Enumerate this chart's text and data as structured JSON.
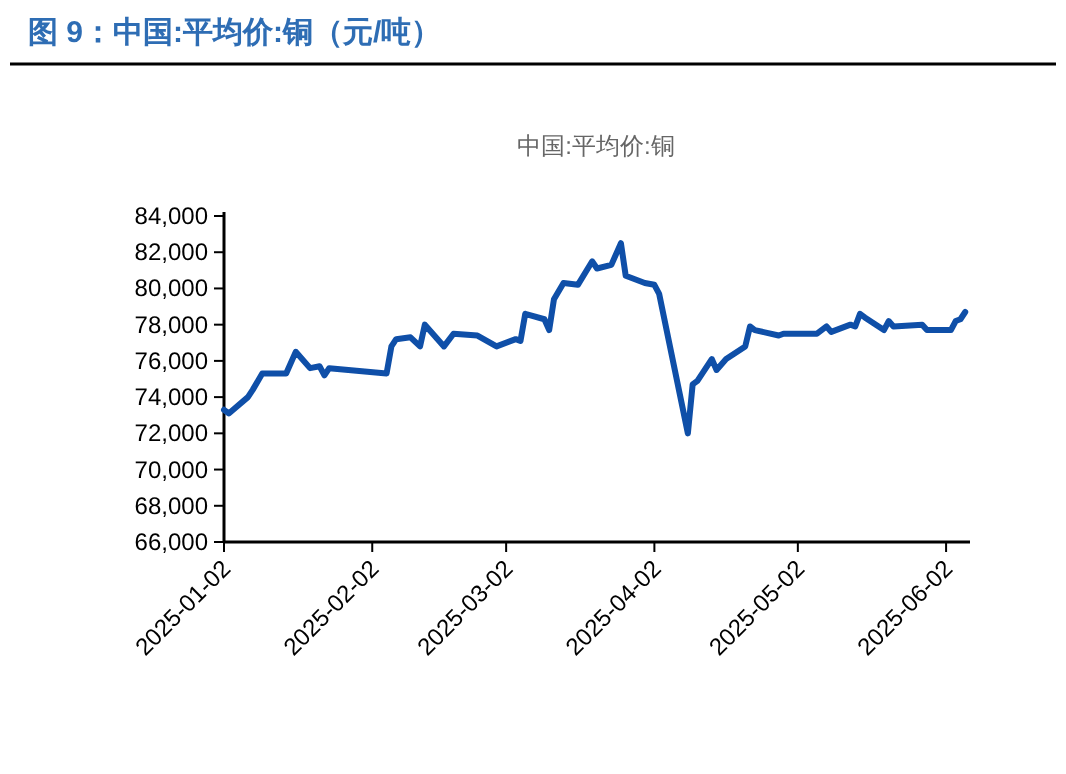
{
  "chart_data": {
    "type": "line",
    "title": "图 9：中国:平均价:铜（元/吨）",
    "subtitle": "中国:平均价:铜",
    "x": [
      "2025-01-02",
      "2025-01-03",
      "2025-01-07",
      "2025-01-08",
      "2025-01-10",
      "2025-01-15",
      "2025-01-17",
      "2025-01-20",
      "2025-01-22",
      "2025-01-23",
      "2025-01-24",
      "2025-02-05",
      "2025-02-06",
      "2025-02-07",
      "2025-02-10",
      "2025-02-12",
      "2025-02-13",
      "2025-02-17",
      "2025-02-19",
      "2025-02-24",
      "2025-02-28",
      "2025-03-04",
      "2025-03-05",
      "2025-03-06",
      "2025-03-10",
      "2025-03-11",
      "2025-03-12",
      "2025-03-14",
      "2025-03-17",
      "2025-03-20",
      "2025-03-21",
      "2025-03-24",
      "2025-03-26",
      "2025-03-27",
      "2025-03-31",
      "2025-04-02",
      "2025-04-03",
      "2025-04-09",
      "2025-04-10",
      "2025-04-11",
      "2025-04-14",
      "2025-04-15",
      "2025-04-17",
      "2025-04-21",
      "2025-04-22",
      "2025-04-23",
      "2025-04-28",
      "2025-04-29",
      "2025-05-06",
      "2025-05-08",
      "2025-05-09",
      "2025-05-13",
      "2025-05-14",
      "2025-05-15",
      "2025-05-16",
      "2025-05-20",
      "2025-05-21",
      "2025-05-22",
      "2025-05-28",
      "2025-05-29",
      "2025-06-03",
      "2025-06-04",
      "2025-06-05",
      "2025-06-06"
    ],
    "series": [
      {
        "color": "#0f4fa8",
        "values": [
          73300,
          73100,
          74000,
          74400,
          75300,
          75300,
          76500,
          75600,
          75700,
          75200,
          75600,
          75300,
          76800,
          77200,
          77300,
          76800,
          78000,
          76800,
          77500,
          77400,
          76800,
          77200,
          77100,
          78600,
          78300,
          77700,
          79400,
          80300,
          80200,
          81500,
          81100,
          81300,
          82500,
          80700,
          80300,
          80200,
          79700,
          72000,
          74700,
          74900,
          76100,
          75500,
          76100,
          76800,
          77900,
          77700,
          77400,
          77500,
          77500,
          77900,
          77600,
          78000,
          77900,
          78600,
          78400,
          77700,
          78200,
          77900,
          78000,
          77700,
          77700,
          78200,
          78300,
          78700
        ]
      }
    ],
    "xlim": [
      "2025-01-02",
      "2025-06-07"
    ],
    "xticks": [
      "2025-01-02",
      "2025-02-02",
      "2025-03-02",
      "2025-04-02",
      "2025-05-02",
      "2025-06-02"
    ],
    "ylim": [
      66000,
      84000
    ],
    "yticks": [
      {
        "value": 66000,
        "label": "66,000"
      },
      {
        "value": 68000,
        "label": "68,000"
      },
      {
        "value": 70000,
        "label": "70,000"
      },
      {
        "value": 72000,
        "label": "72,000"
      },
      {
        "value": 74000,
        "label": "74,000"
      },
      {
        "value": 76000,
        "label": "76,000"
      },
      {
        "value": 78000,
        "label": "78,000"
      },
      {
        "value": 80000,
        "label": "80,000"
      },
      {
        "value": 82000,
        "label": "82,000"
      },
      {
        "value": 84000,
        "label": "84,000"
      }
    ],
    "line_style": "solid"
  }
}
